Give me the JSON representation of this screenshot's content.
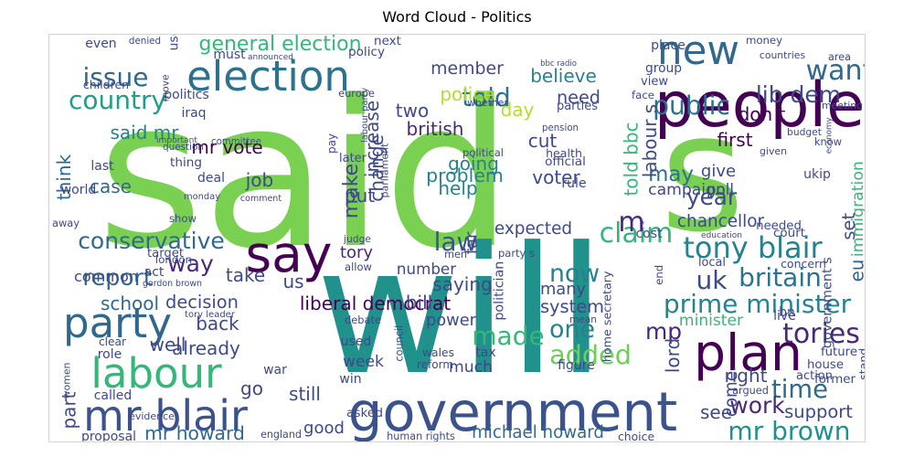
{
  "title": "Word Cloud - Politics",
  "palette": [
    "#440154",
    "#482878",
    "#3e4989",
    "#31688e",
    "#26828e",
    "#1f9e89",
    "#35b779",
    "#6ece58",
    "#b5de2b",
    "#fde725"
  ],
  "words": [
    {
      "text": "said",
      "c": "#7ad151"
    },
    {
      "text": "s",
      "c": "#7ad151"
    },
    {
      "text": "will",
      "c": "#21918c"
    },
    {
      "text": "people",
      "c": "#440154"
    },
    {
      "text": "government",
      "c": "#3b528b"
    },
    {
      "text": "election",
      "c": "#2c728e"
    },
    {
      "text": "new",
      "c": "#31688e"
    },
    {
      "text": "say",
      "c": "#440154"
    },
    {
      "text": "party",
      "c": "#31688e"
    },
    {
      "text": "labour",
      "c": "#35b779"
    },
    {
      "text": "mr blair",
      "c": "#3b528b"
    },
    {
      "text": "plan",
      "c": "#440154"
    },
    {
      "text": "issue",
      "c": "#31688e"
    },
    {
      "text": "country",
      "c": "#1f9e89"
    },
    {
      "text": "want",
      "c": "#31688e"
    },
    {
      "text": "lib dem",
      "c": "#3e4989"
    },
    {
      "text": "public",
      "c": "#2c728e"
    },
    {
      "text": "told",
      "c": "#2c728e"
    },
    {
      "text": "general election",
      "c": "#35b779"
    },
    {
      "text": "conservative",
      "c": "#31688e"
    },
    {
      "text": "way",
      "c": "#482878"
    },
    {
      "text": "law",
      "c": "#3b528b"
    },
    {
      "text": "claim",
      "c": "#35b779"
    },
    {
      "text": "tony blair",
      "c": "#26828e"
    },
    {
      "text": "uk",
      "c": "#3e4989"
    },
    {
      "text": "britain",
      "c": "#2c728e"
    },
    {
      "text": "prime minister",
      "c": "#26828e"
    },
    {
      "text": "tories",
      "c": "#482878"
    },
    {
      "text": "mp",
      "c": "#482878"
    },
    {
      "text": "one",
      "c": "#26828e"
    },
    {
      "text": "made",
      "c": "#35b779"
    },
    {
      "text": "added",
      "c": "#6ece58"
    },
    {
      "text": "now",
      "c": "#26828e"
    },
    {
      "text": "report",
      "c": "#31688e"
    },
    {
      "text": "year",
      "c": "#3e4989"
    },
    {
      "text": "time",
      "c": "#31688e"
    },
    {
      "text": "work",
      "c": "#482878"
    },
    {
      "text": "mr brown",
      "c": "#21918c"
    },
    {
      "text": "may",
      "c": "#2c728e"
    },
    {
      "text": "make",
      "c": "#3e4989"
    },
    {
      "text": "m",
      "c": "#482878"
    },
    {
      "text": "michael howard",
      "c": "#31688e"
    },
    {
      "text": "mr howard",
      "c": "#31688e"
    },
    {
      "text": "liberal democrat",
      "c": "#440154"
    },
    {
      "text": "member",
      "c": "#3e4989"
    },
    {
      "text": "believe",
      "c": "#26828e"
    },
    {
      "text": "need",
      "c": "#3e4989"
    },
    {
      "text": "police",
      "c": "#b5de2b"
    },
    {
      "text": "day",
      "c": "#b5de2b"
    },
    {
      "text": "two",
      "c": "#3e4989"
    },
    {
      "text": "british",
      "c": "#482878"
    },
    {
      "text": "going",
      "c": "#26828e"
    },
    {
      "text": "problem",
      "c": "#26828e"
    },
    {
      "text": "help",
      "c": "#26828e"
    },
    {
      "text": "put",
      "c": "#3e4989"
    },
    {
      "text": "cut",
      "c": "#3e4989"
    },
    {
      "text": "voter",
      "c": "#3e4989"
    },
    {
      "text": "increase",
      "c": "#3e4989"
    },
    {
      "text": "change",
      "c": "#3e4989"
    },
    {
      "text": "said mr",
      "c": "#26828e"
    },
    {
      "text": "mr vote",
      "c": "#440154"
    },
    {
      "text": "case",
      "c": "#31688e"
    },
    {
      "text": "job",
      "c": "#3e4989"
    },
    {
      "text": "think",
      "c": "#31688e"
    },
    {
      "text": "give",
      "c": "#3e4989"
    },
    {
      "text": "poll",
      "c": "#3e4989"
    },
    {
      "text": "campaign",
      "c": "#3e4989"
    },
    {
      "text": "first",
      "c": "#440154"
    },
    {
      "text": "don t",
      "c": "#440154"
    },
    {
      "text": "labour s",
      "c": "#3e4989"
    },
    {
      "text": "told bbc",
      "c": "#35b779"
    },
    {
      "text": "chancellor",
      "c": "#3e4989"
    },
    {
      "text": "immigration",
      "c": "#35b779"
    },
    {
      "text": "set",
      "c": "#3e4989"
    },
    {
      "text": "government s",
      "c": "#3e4989"
    },
    {
      "text": "eu",
      "c": "#31688e"
    },
    {
      "text": "tory",
      "c": "#482878"
    },
    {
      "text": "number",
      "c": "#3e4989"
    },
    {
      "text": "expected",
      "c": "#3e4989"
    },
    {
      "text": "saying",
      "c": "#3e4989"
    },
    {
      "text": "common",
      "c": "#3e4989"
    },
    {
      "text": "take",
      "c": "#3e4989"
    },
    {
      "text": "us",
      "c": "#3e4989"
    },
    {
      "text": "school",
      "c": "#31688e"
    },
    {
      "text": "decision",
      "c": "#3e4989"
    },
    {
      "text": "back",
      "c": "#3e4989"
    },
    {
      "text": "already",
      "c": "#3e4989"
    },
    {
      "text": "well",
      "c": "#3e4989"
    },
    {
      "text": "minister",
      "c": "#35b779"
    },
    {
      "text": "system",
      "c": "#3e4989"
    },
    {
      "text": "many",
      "c": "#3e4989"
    },
    {
      "text": "bill",
      "c": "#3e4989"
    },
    {
      "text": "power",
      "c": "#3e4989"
    },
    {
      "text": "week",
      "c": "#3e4989"
    },
    {
      "text": "much",
      "c": "#3e4989"
    },
    {
      "text": "still",
      "c": "#3e4989"
    },
    {
      "text": "right",
      "c": "#3e4989"
    },
    {
      "text": "come",
      "c": "#3e4989"
    },
    {
      "text": "lord",
      "c": "#3e4989"
    },
    {
      "text": "support",
      "c": "#3e4989"
    },
    {
      "text": "see",
      "c": "#3e4989"
    },
    {
      "text": "good",
      "c": "#3e4989"
    },
    {
      "text": "part",
      "c": "#3e4989"
    },
    {
      "text": "go",
      "c": "#3e4989"
    },
    {
      "text": "even",
      "c": "#3e4989"
    },
    {
      "text": "denied",
      "c": "#3e4989"
    },
    {
      "text": "use",
      "c": "#3e4989"
    },
    {
      "text": "must",
      "c": "#3e4989"
    },
    {
      "text": "announced",
      "c": "#3e4989"
    },
    {
      "text": "next",
      "c": "#3e4989"
    },
    {
      "text": "policy",
      "c": "#3e4989"
    },
    {
      "text": "bbc radio",
      "c": "#3e4989"
    },
    {
      "text": "parties",
      "c": "#3e4989"
    },
    {
      "text": "whether",
      "c": "#3e4989"
    },
    {
      "text": "place",
      "c": "#3e4989"
    },
    {
      "text": "group",
      "c": "#3e4989"
    },
    {
      "text": "money",
      "c": "#3e4989"
    },
    {
      "text": "countries",
      "c": "#3e4989"
    },
    {
      "text": "area",
      "c": "#3e4989"
    },
    {
      "text": "meeting",
      "c": "#3e4989"
    },
    {
      "text": "budget",
      "c": "#3e4989"
    },
    {
      "text": "economy",
      "c": "#3e4989"
    },
    {
      "text": "know",
      "c": "#3e4989"
    },
    {
      "text": "face",
      "c": "#3e4989"
    },
    {
      "text": "children",
      "c": "#3e4989"
    },
    {
      "text": "move",
      "c": "#3e4989"
    },
    {
      "text": "politics",
      "c": "#3e4989"
    },
    {
      "text": "europe",
      "c": "#3e4989"
    },
    {
      "text": "labour party",
      "c": "#3e4989"
    },
    {
      "text": "iraq",
      "c": "#3e4989"
    },
    {
      "text": "important",
      "c": "#3e4989"
    },
    {
      "text": "question",
      "c": "#3e4989"
    },
    {
      "text": "committee",
      "c": "#3e4989"
    },
    {
      "text": "pay",
      "c": "#3e4989"
    },
    {
      "text": "later",
      "c": "#3e4989"
    },
    {
      "text": "parliament",
      "c": "#3e4989"
    },
    {
      "text": "political",
      "c": "#3e4989"
    },
    {
      "text": "pension",
      "c": "#3e4989"
    },
    {
      "text": "health",
      "c": "#3e4989"
    },
    {
      "text": "official",
      "c": "#3e4989"
    },
    {
      "text": "rule",
      "c": "#3e4989"
    },
    {
      "text": "given",
      "c": "#3e4989"
    },
    {
      "text": "last",
      "c": "#3e4989"
    },
    {
      "text": "thing",
      "c": "#3e4989"
    },
    {
      "text": "world",
      "c": "#3e4989"
    },
    {
      "text": "monday",
      "c": "#3e4989"
    },
    {
      "text": "deal",
      "c": "#3e4989"
    },
    {
      "text": "comment",
      "c": "#3e4989"
    },
    {
      "text": "show",
      "c": "#3e4989"
    },
    {
      "text": "away",
      "c": "#3e4989"
    },
    {
      "text": "target",
      "c": "#3e4989"
    },
    {
      "text": "london",
      "c": "#3e4989"
    },
    {
      "text": "act",
      "c": "#3e4989"
    },
    {
      "text": "gordon brown",
      "c": "#3e4989"
    },
    {
      "text": "tory leader",
      "c": "#3e4989"
    },
    {
      "text": "judge",
      "c": "#3e4989"
    },
    {
      "text": "allow",
      "c": "#3e4989"
    },
    {
      "text": "men",
      "c": "#3e4989"
    },
    {
      "text": "far",
      "c": "#3e4989"
    },
    {
      "text": "party s",
      "c": "#3e4989"
    },
    {
      "text": "ukip",
      "c": "#3e4989"
    },
    {
      "text": "cost",
      "c": "#3e4989"
    },
    {
      "text": "court",
      "c": "#3e4989"
    },
    {
      "text": "needed",
      "c": "#3e4989"
    },
    {
      "text": "education",
      "c": "#3e4989"
    },
    {
      "text": "local",
      "c": "#3e4989"
    },
    {
      "text": "concern",
      "c": "#3e4989"
    },
    {
      "text": "end",
      "c": "#3e4989"
    },
    {
      "text": "bn",
      "c": "#3e4989"
    },
    {
      "text": "live",
      "c": "#3e4989"
    },
    {
      "text": "mean",
      "c": "#3e4989"
    },
    {
      "text": "debate",
      "c": "#3e4989"
    },
    {
      "text": "politician",
      "c": "#3e4989"
    },
    {
      "text": "home secretary",
      "c": "#3e4989"
    },
    {
      "text": "council",
      "c": "#3e4989"
    },
    {
      "text": "used",
      "c": "#3e4989"
    },
    {
      "text": "clear",
      "c": "#3e4989"
    },
    {
      "text": "role",
      "c": "#3e4989"
    },
    {
      "text": "women",
      "c": "#3e4989"
    },
    {
      "text": "wales",
      "c": "#3e4989"
    },
    {
      "text": "tax",
      "c": "#3e4989"
    },
    {
      "text": "reform",
      "c": "#3e4989"
    },
    {
      "text": "figure",
      "c": "#3e4989"
    },
    {
      "text": "war",
      "c": "#3e4989"
    },
    {
      "text": "win",
      "c": "#3e4989"
    },
    {
      "text": "asked",
      "c": "#3e4989"
    },
    {
      "text": "called",
      "c": "#3e4989"
    },
    {
      "text": "evidence",
      "c": "#3e4989"
    },
    {
      "text": "proposal",
      "c": "#3e4989"
    },
    {
      "text": "england",
      "c": "#3e4989"
    },
    {
      "text": "human rights",
      "c": "#3e4989"
    },
    {
      "text": "choice",
      "c": "#3e4989"
    },
    {
      "text": "argued",
      "c": "#3e4989"
    },
    {
      "text": "stand",
      "c": "#3e4989"
    },
    {
      "text": "house",
      "c": "#3e4989"
    },
    {
      "text": "former",
      "c": "#3e4989"
    },
    {
      "text": "future",
      "c": "#3e4989"
    },
    {
      "text": "action",
      "c": "#3e4989"
    },
    {
      "text": "view",
      "c": "#3e4989"
    }
  ]
}
